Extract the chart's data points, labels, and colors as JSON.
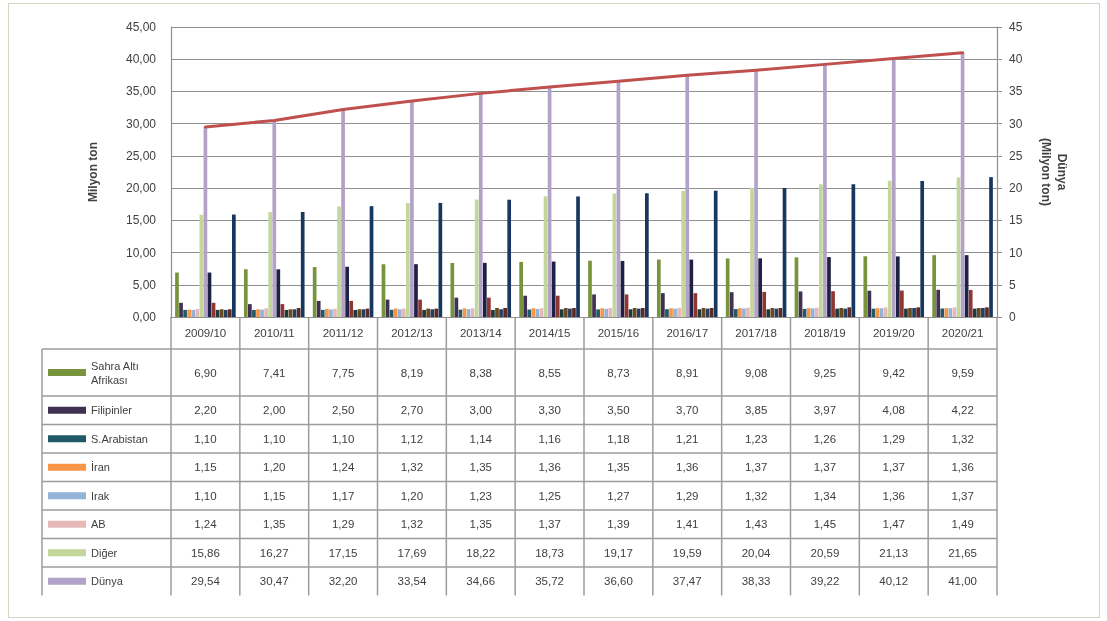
{
  "chart_data": {
    "type": "bar",
    "ylabel": "Milyon ton",
    "y2label": "Dünya (Milyon ton)",
    "categories": [
      "2009/10",
      "2010/11",
      "2011/12",
      "2012/13",
      "2013/14",
      "2014/15",
      "2015/16",
      "2016/17",
      "2017/18",
      "2018/19",
      "2019/20",
      "2020/21"
    ],
    "ylim": [
      0,
      45
    ],
    "yticks": [
      {
        "value": 0,
        "label": "0,00"
      },
      {
        "value": 5,
        "label": "5,00"
      },
      {
        "value": 10,
        "label": "10,00"
      },
      {
        "value": 15,
        "label": "15,00"
      },
      {
        "value": 20,
        "label": "20,00"
      },
      {
        "value": 25,
        "label": "25,00"
      },
      {
        "value": 30,
        "label": "30,00"
      },
      {
        "value": 35,
        "label": "35,00"
      },
      {
        "value": 40,
        "label": "40,00"
      },
      {
        "value": 45,
        "label": "45,00"
      }
    ],
    "y2lim": [
      0,
      45
    ],
    "y2ticks": [
      0,
      5,
      10,
      15,
      20,
      25,
      30,
      35,
      40,
      45
    ],
    "grid": "y",
    "legend": "bottom",
    "series": [
      {
        "name": "Sahra Altı Afrikası",
        "color": "#77933c",
        "values": [
          6.9,
          7.41,
          7.75,
          8.19,
          8.38,
          8.55,
          8.73,
          8.91,
          9.08,
          9.25,
          9.42,
          9.59
        ],
        "value_labels": [
          "6,90",
          "7,41",
          "7,75",
          "8,19",
          "8,38",
          "8,55",
          "8,73",
          "8,91",
          "9,08",
          "9,25",
          "9,42",
          "9,59"
        ]
      },
      {
        "name": "Filipinler",
        "color": "#403152",
        "values": [
          2.2,
          2.0,
          2.5,
          2.7,
          3.0,
          3.3,
          3.5,
          3.7,
          3.85,
          3.97,
          4.08,
          4.22
        ],
        "value_labels": [
          "2,20",
          "2,00",
          "2,50",
          "2,70",
          "3,00",
          "3,30",
          "3,50",
          "3,70",
          "3,85",
          "3,97",
          "4,08",
          "4,22"
        ]
      },
      {
        "name": "S.Arabistan",
        "color": "#215968",
        "values": [
          1.1,
          1.1,
          1.1,
          1.12,
          1.14,
          1.16,
          1.18,
          1.21,
          1.23,
          1.26,
          1.29,
          1.32
        ],
        "value_labels": [
          "1,10",
          "1,10",
          "1,10",
          "1,12",
          "1,14",
          "1,16",
          "1,18",
          "1,21",
          "1,23",
          "1,26",
          "1,29",
          "1,32"
        ]
      },
      {
        "name": "İran",
        "color": "#f79646",
        "values": [
          1.15,
          1.2,
          1.24,
          1.32,
          1.35,
          1.36,
          1.35,
          1.36,
          1.37,
          1.37,
          1.37,
          1.36
        ],
        "value_labels": [
          "1,15",
          "1,20",
          "1,24",
          "1,32",
          "1,35",
          "1,36",
          "1,35",
          "1,36",
          "1,37",
          "1,37",
          "1,37",
          "1,36"
        ]
      },
      {
        "name": "Irak",
        "color": "#95b3d7",
        "values": [
          1.1,
          1.15,
          1.17,
          1.2,
          1.23,
          1.25,
          1.27,
          1.29,
          1.32,
          1.34,
          1.36,
          1.37
        ],
        "value_labels": [
          "1,10",
          "1,15",
          "1,17",
          "1,20",
          "1,23",
          "1,25",
          "1,27",
          "1,29",
          "1,32",
          "1,34",
          "1,36",
          "1,37"
        ]
      },
      {
        "name": "AB",
        "color": "#e6b9b8",
        "values": [
          1.24,
          1.35,
          1.29,
          1.32,
          1.35,
          1.37,
          1.39,
          1.41,
          1.43,
          1.45,
          1.47,
          1.49
        ],
        "value_labels": [
          "1,24",
          "1,35",
          "1,29",
          "1,32",
          "1,35",
          "1,37",
          "1,39",
          "1,41",
          "1,43",
          "1,45",
          "1,47",
          "1,49"
        ]
      },
      {
        "name": "Diğer",
        "color": "#c3d69b",
        "values": [
          15.86,
          16.27,
          17.15,
          17.69,
          18.22,
          18.73,
          19.17,
          19.59,
          20.04,
          20.59,
          21.13,
          21.65
        ],
        "value_labels": [
          "15,86",
          "16,27",
          "17,15",
          "17,69",
          "18,22",
          "18,73",
          "19,17",
          "19,59",
          "20,04",
          "20,59",
          "21,13",
          "21,65"
        ]
      },
      {
        "name": "Dünya",
        "color": "#b3a2c7",
        "values": [
          29.54,
          30.47,
          32.2,
          33.54,
          34.66,
          35.72,
          36.6,
          37.47,
          38.33,
          39.22,
          40.12,
          41.0
        ],
        "value_labels": [
          "29,54",
          "30,47",
          "32,20",
          "33,54",
          "34,66",
          "35,72",
          "36,60",
          "37,47",
          "38,33",
          "39,22",
          "40,12",
          "41,00"
        ]
      },
      {
        "color": "#1f2045",
        "values": [
          6.9,
          7.4,
          7.8,
          8.2,
          8.4,
          8.6,
          8.7,
          8.9,
          9.1,
          9.3,
          9.4,
          9.6
        ]
      },
      {
        "color": "#8e3631",
        "values": [
          2.2,
          2.0,
          2.5,
          2.7,
          3.0,
          3.3,
          3.5,
          3.7,
          3.9,
          4.0,
          4.1,
          4.2
        ]
      },
      {
        "color": "#1d3b3b",
        "values": [
          1.1,
          1.1,
          1.1,
          1.1,
          1.1,
          1.2,
          1.2,
          1.2,
          1.2,
          1.3,
          1.3,
          1.3
        ]
      },
      {
        "color": "#6b4a22",
        "values": [
          1.2,
          1.2,
          1.2,
          1.3,
          1.4,
          1.4,
          1.4,
          1.4,
          1.4,
          1.4,
          1.4,
          1.4
        ]
      },
      {
        "color": "#243f60",
        "values": [
          1.1,
          1.2,
          1.2,
          1.2,
          1.2,
          1.3,
          1.3,
          1.3,
          1.3,
          1.3,
          1.4,
          1.4
        ]
      },
      {
        "color": "#5e2a28",
        "values": [
          1.2,
          1.4,
          1.3,
          1.3,
          1.4,
          1.4,
          1.4,
          1.4,
          1.4,
          1.5,
          1.5,
          1.5
        ]
      },
      {
        "color": "#17375e",
        "values": [
          15.9,
          16.3,
          17.2,
          17.7,
          18.2,
          18.7,
          19.2,
          19.6,
          20.0,
          20.6,
          21.1,
          21.7
        ]
      },
      {
        "type": "line",
        "color": "#c0504d",
        "values": [
          29.5,
          30.5,
          32.2,
          33.5,
          34.7,
          35.7,
          36.6,
          37.5,
          38.3,
          39.2,
          40.1,
          41.0
        ]
      }
    ]
  }
}
